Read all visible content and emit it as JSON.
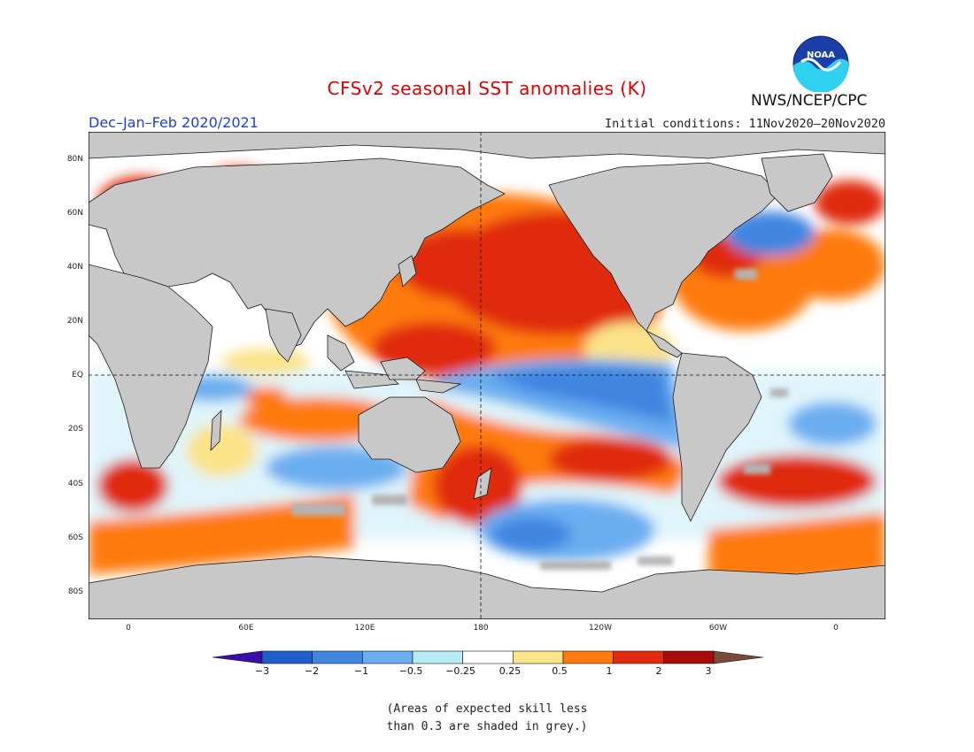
{
  "title": "CFSv2 seasonal SST anomalies (K)",
  "season": "Dec–Jan–Feb 2020/2021",
  "initial_conditions": "Initial conditions: 11Nov2020–20Nov2020",
  "credit": "NWS/NCEP/CPC",
  "logo_text": "NOAA",
  "lat_ticks": [
    "80N",
    "60N",
    "40N",
    "20N",
    "EQ",
    "20S",
    "40S",
    "60S",
    "80S"
  ],
  "lon_ticks": [
    "0",
    "60E",
    "120E",
    "180",
    "120W",
    "60W",
    "0"
  ],
  "colorbar": {
    "levels": [
      "−3",
      "−2",
      "−1",
      "−0.5",
      "−0.25",
      "0.25",
      "0.5",
      "1",
      "2",
      "3"
    ],
    "colors": [
      "#3a0fa8",
      "#1f5fc8",
      "#3f86e0",
      "#6aaef0",
      "#b7ecf5",
      "#ffffff",
      "#fbe38a",
      "#ff7a10",
      "#e02b10",
      "#a80b0b",
      "#7a4a3a"
    ]
  },
  "note_line1": "(Areas of expected skill less",
  "note_line2": "than 0.3 are shaded in grey.)",
  "colors": {
    "land": "#c8c8c8",
    "low_skill": "#b4b4b4",
    "title": "#e00000",
    "season": "#1f3fd8"
  }
}
